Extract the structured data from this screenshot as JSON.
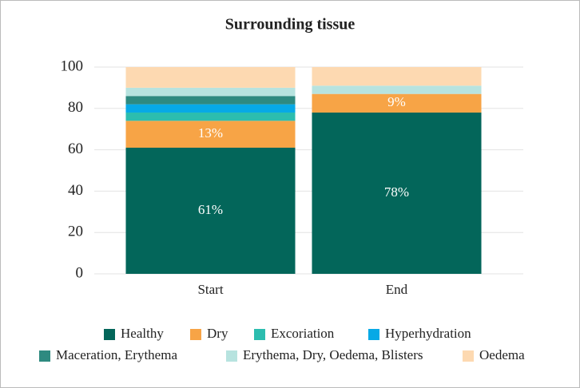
{
  "chart_data": {
    "type": "stacked_bar",
    "title": "Surrounding tissue",
    "categories": [
      "Start",
      "End"
    ],
    "series": [
      {
        "name": "Healthy",
        "color": "#03665a",
        "values": [
          61,
          78
        ],
        "value_labels": [
          "61%",
          "78%"
        ]
      },
      {
        "name": "Dry",
        "color": "#f7a446",
        "values": [
          13,
          9
        ],
        "value_labels": [
          "13%",
          "9%"
        ]
      },
      {
        "name": "Excoriation",
        "color": "#2cbdaf",
        "values": [
          4,
          0
        ]
      },
      {
        "name": "Hyperhydration",
        "color": "#07a9e6",
        "values": [
          4,
          0
        ]
      },
      {
        "name": "Maceration, Erythema",
        "color": "#2e8a80",
        "values": [
          4,
          0
        ]
      },
      {
        "name": "Erythema, Dry, Oedema, Blisters",
        "color": "#b7e3df",
        "values": [
          4,
          4
        ]
      },
      {
        "name": "Oedema",
        "color": "#fdd9b1",
        "values": [
          10,
          9
        ]
      }
    ],
    "ylim": [
      0,
      100
    ],
    "yticks": [
      0,
      20,
      40,
      60,
      80,
      100
    ],
    "grid": true,
    "legend": "bottom"
  }
}
